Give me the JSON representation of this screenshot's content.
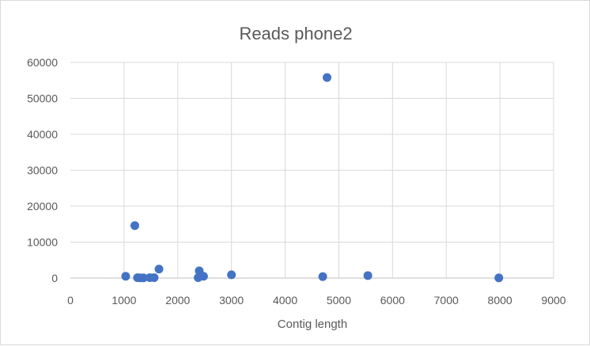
{
  "chart_data": {
    "type": "scatter",
    "title": "Reads phone2",
    "xlabel": "Contig length",
    "ylabel": "",
    "xlim": [
      0,
      9000
    ],
    "ylim": [
      0,
      60000
    ],
    "x_ticks": [
      "0",
      "1000",
      "2000",
      "3000",
      "4000",
      "5000",
      "6000",
      "7000",
      "8000",
      "9000"
    ],
    "y_ticks": [
      "0",
      "10000",
      "20000",
      "30000",
      "40000",
      "50000",
      "60000"
    ],
    "grid": true,
    "legend": "none",
    "marker_color": "#4472C4",
    "points": [
      {
        "x": 1030,
        "y": 500
      },
      {
        "x": 1200,
        "y": 14600
      },
      {
        "x": 1250,
        "y": 100
      },
      {
        "x": 1300,
        "y": 50
      },
      {
        "x": 1360,
        "y": 50
      },
      {
        "x": 1480,
        "y": 100
      },
      {
        "x": 1560,
        "y": 100
      },
      {
        "x": 1650,
        "y": 2500
      },
      {
        "x": 2380,
        "y": 100
      },
      {
        "x": 2400,
        "y": 2000
      },
      {
        "x": 2480,
        "y": 500
      },
      {
        "x": 3000,
        "y": 900
      },
      {
        "x": 4700,
        "y": 400
      },
      {
        "x": 4780,
        "y": 55800
      },
      {
        "x": 5540,
        "y": 700
      },
      {
        "x": 7980,
        "y": 50
      }
    ]
  }
}
